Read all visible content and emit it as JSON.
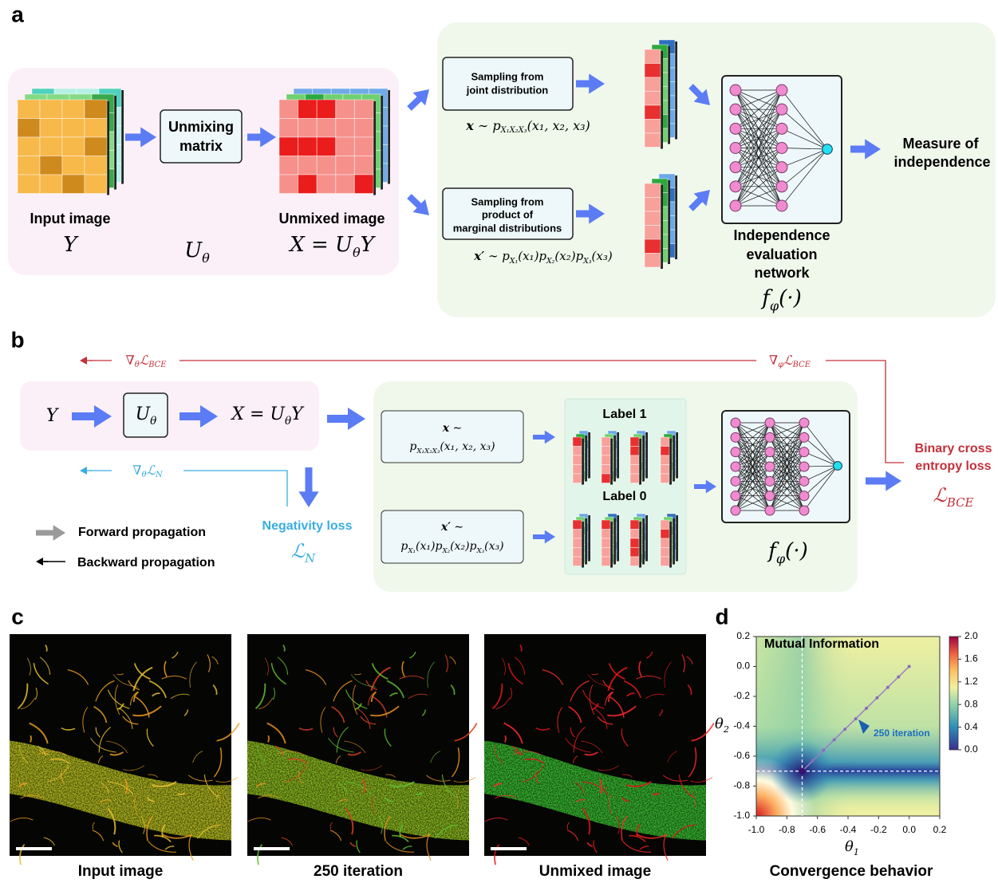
{
  "panel_a": {
    "letter": "a",
    "input_label": "Input image",
    "input_symbol": "Y",
    "matrix_label": [
      "Unmixing",
      "matrix"
    ],
    "matrix_symbol": [
      "U",
      {
        "sub": "θ"
      }
    ],
    "unmixed_label": "Unmixed image",
    "unmixed_symbol": [
      "X = U",
      {
        "sub": "θ"
      },
      "Y"
    ],
    "joint_box": [
      "Sampling from",
      "joint distribution"
    ],
    "joint_formula": [
      {
        "bold": "x"
      },
      " ∼ p",
      {
        "sub": "X₁X₂X₃"
      },
      "(x₁, x₂, x₃)"
    ],
    "marginal_box": [
      "Sampling from",
      "product of",
      "marginal distributions"
    ],
    "marginal_formula": [
      {
        "bold": "x′"
      },
      " ∼ p",
      {
        "sub": "X₁"
      },
      "(x₁)p",
      {
        "sub": "X₂"
      },
      "(x₂)p",
      {
        "sub": "X₃"
      },
      "(x₃)"
    ],
    "network_label": [
      "Independence",
      "evaluation",
      "network"
    ],
    "network_symbol": [
      "f",
      {
        "sub": "φ"
      },
      "(·)"
    ],
    "output_label": [
      "Measure of",
      "independence"
    ]
  },
  "panel_b": {
    "letter": "b",
    "grad_theta_bce": [
      "∇",
      {
        "sub": "θ"
      },
      "ℒ",
      {
        "sub": "BCE"
      }
    ],
    "grad_phi_bce": [
      "∇",
      {
        "sub": "φ"
      },
      "ℒ",
      {
        "sub": "BCE"
      }
    ],
    "grad_theta_n": [
      "∇",
      {
        "sub": "θ"
      },
      "ℒ",
      {
        "sub": "N"
      }
    ],
    "input_symbol": "Y",
    "matrix_symbol": [
      "U",
      {
        "sub": "θ"
      }
    ],
    "unmixed_symbol": [
      "X = U",
      {
        "sub": "θ"
      },
      "Y"
    ],
    "joint_formula": [
      [
        {
          "bold": "x"
        },
        " ∼"
      ],
      [
        "p",
        {
          "sub": "X₁X₂X₃"
        },
        "(x₁, x₂, x₃)"
      ]
    ],
    "marginal_formula": [
      [
        {
          "bold": "x′"
        },
        " ∼"
      ],
      [
        "p",
        {
          "sub": "X₁"
        },
        "(x₁)p",
        {
          "sub": "X₂"
        },
        "(x₂)p",
        {
          "sub": "X₃"
        },
        "(x₃)"
      ]
    ],
    "label_1": "Label 1",
    "label_0": "Label 0",
    "network_symbol": [
      "f",
      {
        "sub": "φ"
      },
      "(·)"
    ],
    "loss_label": [
      "Binary cross",
      "entropy loss"
    ],
    "loss_symbol": [
      "ℒ",
      {
        "sub": "BCE"
      }
    ],
    "negativity_label": "Negativity loss",
    "negativity_symbol": [
      "ℒ",
      {
        "sub": "N"
      }
    ],
    "legend": [
      "Forward propagation",
      "Backward propagation"
    ]
  },
  "panel_c": {
    "letter": "c",
    "captions": [
      "Input image",
      "250 iteration",
      "Unmixed image"
    ]
  },
  "panel_d": {
    "letter": "d",
    "title": "Mutual Information",
    "xlim": [
      -1,
      0.2
    ],
    "ylim": [
      -1,
      0.2
    ],
    "xticks": [
      {
        "value": -1,
        "label": "-1.0"
      },
      -0.8,
      -0.6,
      -0.4,
      -0.2,
      {
        "value": 0,
        "label": "0.0"
      },
      0.2
    ],
    "yticks": [
      {
        "value": -1,
        "label": "-1.0"
      },
      -0.8,
      -0.6,
      -0.4,
      -0.2,
      {
        "value": 0,
        "label": "0.0"
      },
      0.2
    ],
    "xlabel": [
      "θ",
      {
        "sub": "1"
      }
    ],
    "ylabel": [
      "θ",
      {
        "sub": "2"
      }
    ],
    "colorbar": {
      "lim": [
        0,
        2
      ],
      "ticks": [
        {
          "value": 0,
          "label": "0.0"
        },
        0.4,
        0.8,
        1.2,
        1.6,
        {
          "value": 2,
          "label": "2.0"
        }
      ]
    },
    "trajectory": {
      "x": [
        0,
        -0.07,
        -0.14,
        -0.21,
        -0.28,
        -0.35,
        -0.42,
        -0.49,
        -0.56,
        -0.63,
        -0.7
      ],
      "y": [
        0,
        -0.07,
        -0.14,
        -0.21,
        -0.28,
        -0.35,
        -0.42,
        -0.49,
        -0.56,
        -0.63,
        -0.7
      ]
    },
    "guides": {
      "x": -0.7,
      "y": -0.7
    },
    "annotation": "250 iteration",
    "caption": "Convergence behavior"
  }
}
